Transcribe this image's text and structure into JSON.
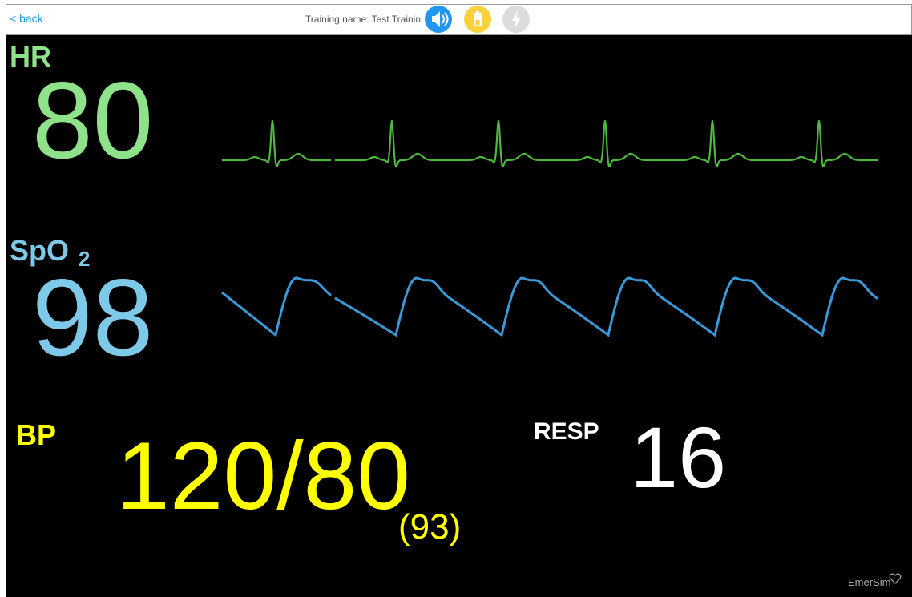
{
  "header": {
    "back": "< back",
    "training_name": "Training name: Test Trainin"
  },
  "vitals": {
    "hr": {
      "label": "HR",
      "value": "80"
    },
    "spo2": {
      "label": "SpO",
      "label_sub": "2",
      "value": "98"
    },
    "bp": {
      "label": "BP",
      "value": "120/80",
      "mean": "(93)"
    },
    "resp": {
      "label": "RESP",
      "value": "16"
    }
  },
  "footer": {
    "brand": "EmerSim"
  }
}
